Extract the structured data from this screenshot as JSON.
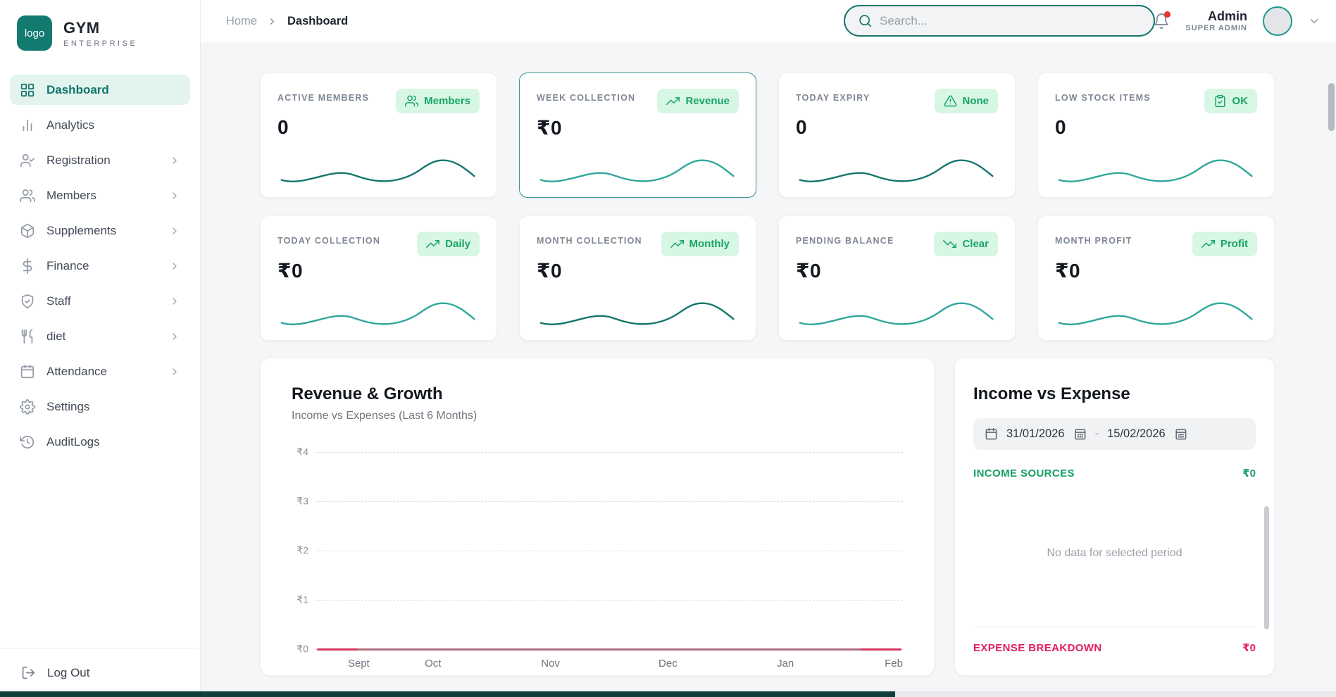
{
  "brand": {
    "logo_badge": "logo",
    "name": "GYM",
    "tagline": "ENTERPRISE"
  },
  "header": {
    "breadcrumb": {
      "home": "Home",
      "current": "Dashboard"
    },
    "search": {
      "placeholder": "Search..."
    },
    "user": {
      "name": "Admin",
      "role": "SUPER ADMIN"
    }
  },
  "sidebar": {
    "items": [
      {
        "label": "Dashboard",
        "icon": "grid-icon",
        "active": true,
        "chevron": false
      },
      {
        "label": "Analytics",
        "icon": "bar-chart-icon",
        "active": false,
        "chevron": false
      },
      {
        "label": "Registration",
        "icon": "user-check-icon",
        "active": false,
        "chevron": true
      },
      {
        "label": "Members",
        "icon": "users-icon",
        "active": false,
        "chevron": true
      },
      {
        "label": "Supplements",
        "icon": "package-icon",
        "active": false,
        "chevron": true
      },
      {
        "label": "Finance",
        "icon": "dollar-icon",
        "active": false,
        "chevron": true
      },
      {
        "label": "Staff",
        "icon": "shield-check-icon",
        "active": false,
        "chevron": true
      },
      {
        "label": "diet",
        "icon": "utensils-icon",
        "active": false,
        "chevron": true
      },
      {
        "label": "Attendance",
        "icon": "calendar-icon",
        "active": false,
        "chevron": true
      },
      {
        "label": "Settings",
        "icon": "gear-icon",
        "active": false,
        "chevron": false
      },
      {
        "label": "AuditLogs",
        "icon": "history-icon",
        "active": false,
        "chevron": false
      }
    ],
    "logout_label": "Log Out"
  },
  "stat_cards": [
    {
      "label": "ACTIVE MEMBERS",
      "value": "0",
      "badge": "Members",
      "badge_icon": "users-icon",
      "spark_color": "#15756b",
      "highlighted": false
    },
    {
      "label": "WEEK COLLECTION",
      "value": "₹0",
      "badge": "Revenue",
      "badge_icon": "trending-up-icon",
      "spark_color": "#2fa79b",
      "highlighted": true
    },
    {
      "label": "TODAY EXPIRY",
      "value": "0",
      "badge": "None",
      "badge_icon": "alert-triangle-icon",
      "spark_color": "#15756b",
      "highlighted": false
    },
    {
      "label": "LOW STOCK ITEMS",
      "value": "0",
      "badge": "OK",
      "badge_icon": "clipboard-check-icon",
      "spark_color": "#2fa79b",
      "highlighted": false
    },
    {
      "label": "TODAY COLLECTION",
      "value": "₹0",
      "badge": "Daily",
      "badge_icon": "trending-up-icon",
      "spark_color": "#2fa79b",
      "highlighted": false
    },
    {
      "label": "MONTH COLLECTION",
      "value": "₹0",
      "badge": "Monthly",
      "badge_icon": "trending-up-icon",
      "spark_color": "#15756b",
      "highlighted": false
    },
    {
      "label": "PENDING BALANCE",
      "value": "₹0",
      "badge": "Clear",
      "badge_icon": "trending-down-icon",
      "spark_color": "#2fa79b",
      "highlighted": false
    },
    {
      "label": "MONTH PROFIT",
      "value": "₹0",
      "badge": "Profit",
      "badge_icon": "trending-up-icon",
      "spark_color": "#2fa79b",
      "highlighted": false
    }
  ],
  "revenue_panel": {
    "title": "Revenue & Growth",
    "subtitle": "Income vs Expenses (Last 6 Months)"
  },
  "chart_data": {
    "type": "line",
    "title": "Revenue & Growth",
    "subtitle": "Income vs Expenses (Last 6 Months)",
    "x": [
      "Sept",
      "Oct",
      "Nov",
      "Dec",
      "Jan",
      "Feb"
    ],
    "series": [
      {
        "name": "Income",
        "color": "#14857c",
        "values": [
          0,
          0,
          0,
          0,
          0,
          0
        ]
      },
      {
        "name": "Expenses",
        "color": "#e11d5e",
        "values": [
          0,
          0,
          0,
          0,
          0,
          0
        ]
      }
    ],
    "y_ticks": [
      "₹4",
      "₹3",
      "₹2",
      "₹1",
      "₹0"
    ],
    "ylim": [
      0,
      4
    ],
    "grid": "horizontal-dashed",
    "legend": "none"
  },
  "income_expense": {
    "title": "Income vs Expense",
    "date_from": "31/01/2026",
    "date_separator": "-",
    "date_to": "15/02/2026",
    "income_label": "INCOME SOURCES",
    "income_total": "₹0",
    "empty_text": "No data for selected period",
    "expense_label": "EXPENSE BREAKDOWN",
    "expense_total": "₹0"
  },
  "colors": {
    "primary_teal": "#13756c",
    "sidebar_active_bg": "#e3f4ef",
    "badge_bg": "#d7f6e4",
    "badge_text": "#18a565",
    "income_green": "#159f63",
    "expense_red": "#e11d5e",
    "notification_dot": "#e8342c"
  }
}
